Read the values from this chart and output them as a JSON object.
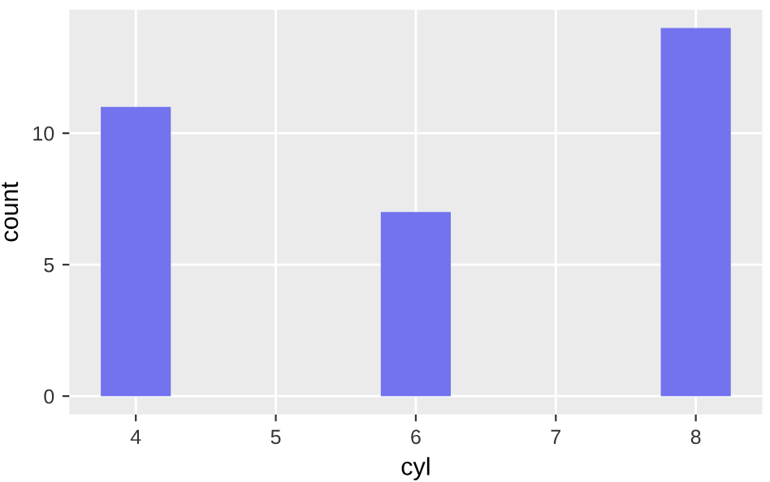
{
  "chart_data": {
    "type": "bar",
    "xlabel": "cyl",
    "ylabel": "count",
    "x": [
      4,
      6,
      8
    ],
    "values": [
      11,
      7,
      14
    ],
    "color": "#7373ef",
    "xlim": [
      3.525,
      8.475
    ],
    "xticks": [
      4,
      5,
      6,
      7,
      8
    ],
    "ylim": [
      -0.7,
      14.7
    ],
    "yticks": [
      0,
      5,
      10
    ],
    "grid": true
  }
}
